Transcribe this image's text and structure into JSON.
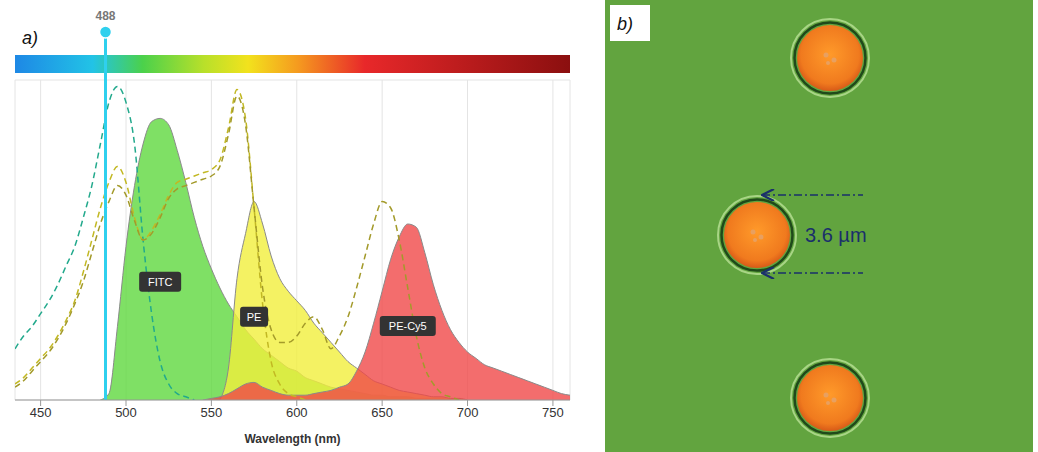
{
  "chart_data": {
    "type": "area",
    "panel_label": "a)",
    "x_label": "Wavelength (nm)",
    "x": [
      435,
      440,
      445,
      450,
      455,
      460,
      465,
      470,
      475,
      480,
      485,
      490,
      495,
      500,
      505,
      510,
      515,
      520,
      525,
      530,
      535,
      540,
      545,
      550,
      555,
      560,
      565,
      570,
      575,
      580,
      585,
      590,
      595,
      600,
      605,
      610,
      615,
      620,
      625,
      630,
      635,
      640,
      645,
      650,
      655,
      660,
      665,
      670,
      675,
      680,
      685,
      690,
      695,
      700,
      705,
      710,
      715,
      720,
      725,
      730,
      735,
      740,
      745,
      750,
      755,
      760
    ],
    "xlim": [
      435,
      760
    ],
    "xticks": [
      450,
      500,
      550,
      600,
      650,
      700,
      750
    ],
    "ylim": [
      0,
      100
    ],
    "yticks": [
      0,
      20,
      40,
      60,
      80,
      100
    ],
    "grid": true,
    "tick_labels": "x",
    "laser_line": {
      "x": 488,
      "color": "#2fd0ee"
    },
    "series": [
      {
        "name": "FITC",
        "type": "area",
        "color": "#5fd83f",
        "values": [
          null,
          null,
          null,
          null,
          null,
          null,
          null,
          null,
          null,
          null,
          0,
          2,
          23,
          48,
          67,
          80,
          87,
          88,
          86,
          78,
          68,
          57,
          48,
          41,
          35,
          30,
          26,
          22,
          19,
          16,
          14,
          12,
          10,
          9,
          7,
          6,
          5,
          4,
          3.5,
          3,
          2.5,
          2,
          1.5,
          1.5,
          1,
          1,
          1,
          0.5,
          0.5,
          0.5,
          0.5,
          0,
          null,
          null,
          null,
          null,
          null,
          null,
          null,
          null,
          null,
          null,
          null,
          null,
          null,
          null
        ]
      },
      {
        "name": "PE",
        "type": "area",
        "color": "#f1ef3c",
        "values": [
          null,
          null,
          null,
          null,
          null,
          null,
          null,
          null,
          null,
          null,
          null,
          null,
          null,
          null,
          null,
          null,
          null,
          null,
          null,
          null,
          null,
          null,
          null,
          null,
          0,
          10,
          38,
          52,
          62,
          55,
          45,
          38,
          34,
          31,
          28,
          24,
          21,
          18,
          15,
          12,
          10,
          8,
          6,
          5,
          4,
          3,
          2.5,
          2,
          1.5,
          1,
          1,
          0.5,
          0.5,
          0,
          null,
          null,
          null,
          null,
          null,
          null,
          null,
          null,
          null,
          null,
          null,
          null
        ]
      },
      {
        "name": "PE-Cy5",
        "type": "area",
        "color": "#f04848",
        "values": [
          null,
          null,
          null,
          null,
          null,
          null,
          null,
          null,
          null,
          null,
          null,
          null,
          null,
          null,
          null,
          null,
          null,
          null,
          null,
          null,
          null,
          null,
          0,
          0.5,
          1,
          2,
          3.5,
          5,
          5.5,
          4,
          3,
          2,
          1.5,
          1.5,
          1.5,
          2,
          2.5,
          3,
          4,
          5,
          9,
          15,
          24,
          34,
          44,
          51,
          55,
          54,
          46,
          36,
          28,
          22,
          18,
          15,
          13,
          11,
          10,
          9,
          8,
          7,
          6,
          5,
          4,
          3,
          2,
          1.5
        ]
      },
      {
        "type": "line",
        "line_style": "dashed",
        "color": "#22a98c",
        "values": [
          16,
          20,
          23,
          27,
          31,
          36,
          42,
          48,
          57,
          67,
          80,
          93,
          98,
          93,
          80,
          50,
          27,
          12,
          5,
          2,
          1,
          0,
          null,
          null,
          null,
          null,
          null,
          null,
          null,
          null,
          null,
          null,
          null,
          null,
          null,
          null,
          null,
          null,
          null,
          null,
          null,
          null,
          null,
          null,
          null,
          null,
          null,
          null,
          null,
          null,
          null,
          null,
          null,
          null,
          null,
          null,
          null,
          null,
          null,
          null,
          null,
          null,
          null,
          null,
          null,
          null
        ]
      },
      {
        "type": "line",
        "line_style": "dashed",
        "color": "#c2b823",
        "values": [
          5,
          7,
          10,
          13,
          16,
          20,
          25,
          31,
          40,
          50,
          60,
          68,
          73,
          68,
          57,
          50,
          53,
          58,
          64,
          68,
          69,
          70,
          71,
          72,
          75,
          85,
          97,
          88,
          60,
          30,
          12,
          5,
          2,
          1,
          0,
          null,
          null,
          null,
          null,
          null,
          null,
          null,
          null,
          null,
          null,
          null,
          null,
          null,
          null,
          null,
          null,
          null,
          null,
          null,
          null,
          null,
          null,
          null,
          null,
          null,
          null,
          null,
          null,
          null,
          null,
          null
        ]
      },
      {
        "type": "line",
        "line_style": "dashed",
        "color": "#a39a2a",
        "values": [
          4,
          6,
          9,
          12,
          15,
          19,
          24,
          30,
          37,
          46,
          55,
          62,
          67,
          64,
          56,
          50,
          52,
          57,
          63,
          66,
          67,
          68,
          69,
          70,
          73,
          83,
          95,
          86,
          60,
          35,
          22,
          18,
          18,
          20,
          24,
          26,
          22,
          16,
          20,
          26,
          35,
          45,
          55,
          62,
          60,
          50,
          35,
          20,
          10,
          5,
          2,
          1,
          0,
          null,
          null,
          null,
          null,
          null,
          null,
          null,
          null,
          null,
          null,
          null,
          null,
          null
        ]
      }
    ]
  },
  "micrograph": {
    "label": "b)",
    "scale_label": "3.6 µm"
  }
}
